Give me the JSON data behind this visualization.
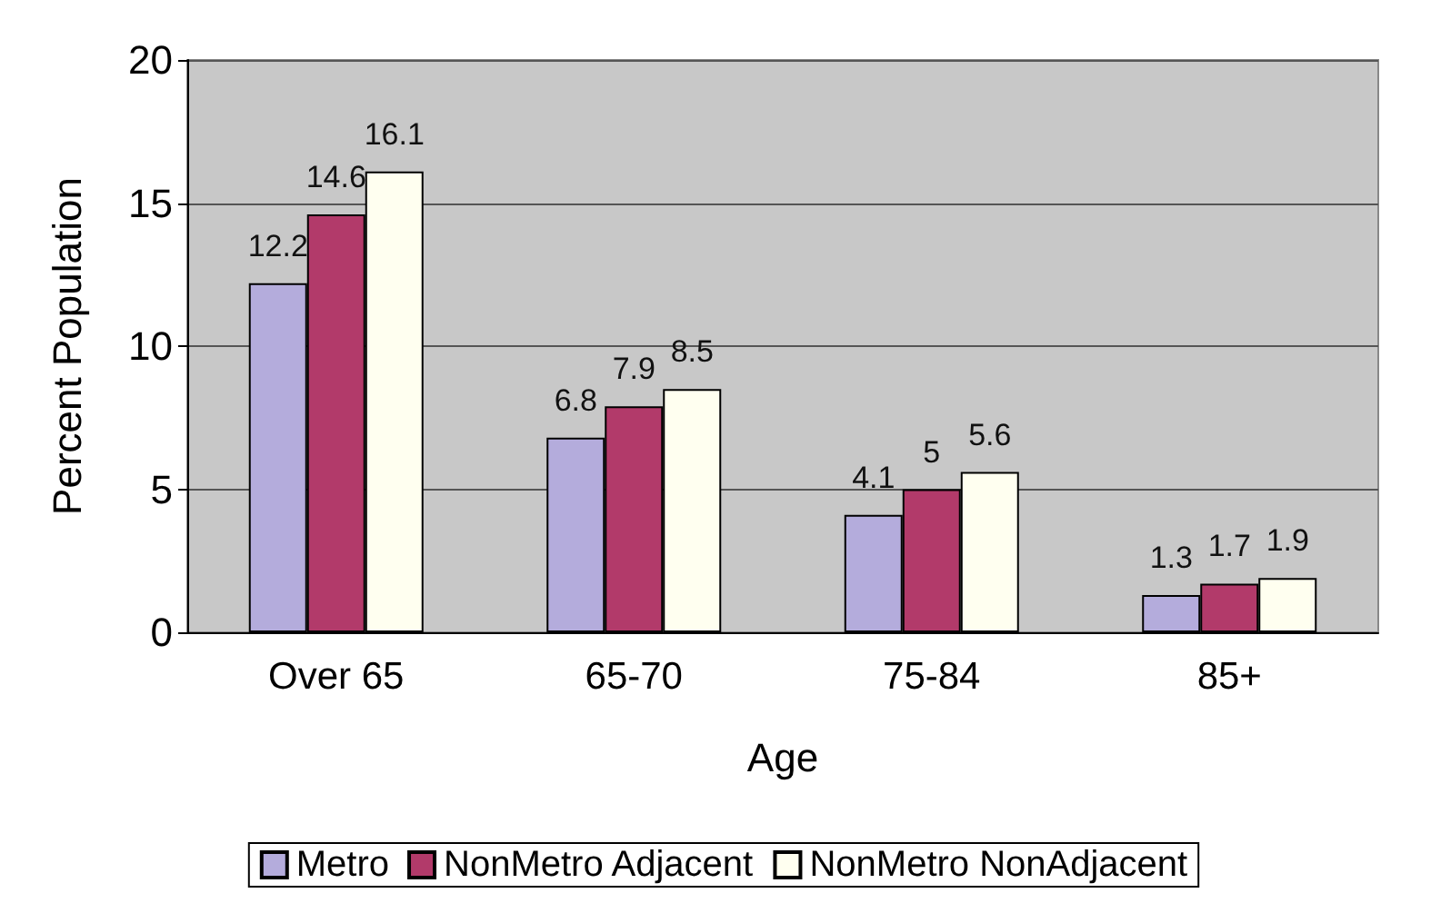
{
  "chart_data": {
    "type": "bar",
    "xlabel": "Age",
    "ylabel": "Percent Population",
    "categories": [
      "Over 65",
      "65-70",
      "75-84",
      "85+"
    ],
    "series": [
      {
        "name": "Metro",
        "color": "#b4acdc",
        "values": [
          12.2,
          6.8,
          4.1,
          1.3
        ]
      },
      {
        "name": "NonMetro Adjacent",
        "color": "#b23a6a",
        "values": [
          14.6,
          7.9,
          5,
          1.7
        ]
      },
      {
        "name": "NonMetro NonAdjacent",
        "color": "#fffff0",
        "values": [
          16.1,
          8.5,
          5.6,
          1.9
        ]
      }
    ],
    "ylim": [
      0,
      20
    ],
    "yticks": [
      0,
      5,
      10,
      15,
      20
    ],
    "grid": "y",
    "legend": "bottom",
    "data_labels": true
  }
}
